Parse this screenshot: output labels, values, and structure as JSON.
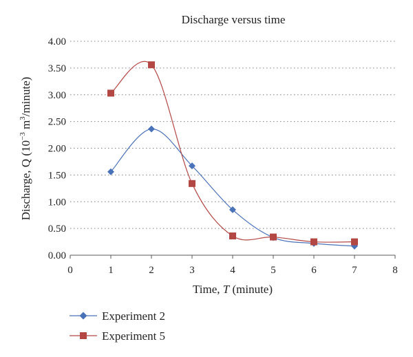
{
  "chart_data": {
    "type": "line",
    "title": "Discharge versus time",
    "xlabel": {
      "prefix": "Time, ",
      "variable": "T",
      "suffix": " (minute)"
    },
    "ylabel": {
      "prefix": "Discharge, Q (10",
      "exponent1": "−3",
      "unit": " m",
      "exponent2": "3",
      "suffix": "/minute)"
    },
    "xlim": [
      0,
      8
    ],
    "ylim": [
      0,
      4
    ],
    "x_ticks": [
      "0",
      "1",
      "2",
      "3",
      "4",
      "5",
      "6",
      "7",
      "8"
    ],
    "y_ticks": [
      "0.00",
      "0.50",
      "1.00",
      "1.50",
      "2.00",
      "2.50",
      "3.00",
      "3.50",
      "4.00"
    ],
    "grid": "horizontal dotted",
    "legend_position": "bottom-left",
    "series": [
      {
        "name": "Experiment 2",
        "marker": "diamond",
        "color": "#4a72b8",
        "x": [
          1,
          2,
          3,
          4,
          5,
          6,
          7
        ],
        "values": [
          1.56,
          2.36,
          1.67,
          0.85,
          0.33,
          0.22,
          0.17
        ]
      },
      {
        "name": "Experiment 5",
        "marker": "square",
        "color": "#b34744",
        "x": [
          1,
          2,
          3,
          4,
          5,
          6,
          7
        ],
        "values": [
          3.03,
          3.56,
          1.34,
          0.36,
          0.34,
          0.25,
          0.25
        ]
      }
    ]
  }
}
